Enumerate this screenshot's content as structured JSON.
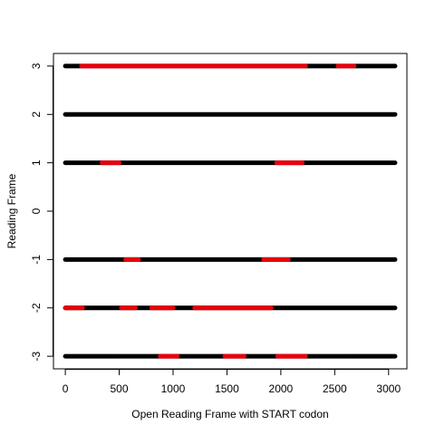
{
  "chart_data": {
    "type": "line",
    "xlabel": "Open Reading Frame with START codon",
    "ylabel": "Reading Frame",
    "xlim": [
      -110,
      3170
    ],
    "ylim": [
      -3.26,
      3.26
    ],
    "xticks": [
      0,
      500,
      1000,
      1500,
      2000,
      2500,
      3000
    ],
    "yticks": [
      -3,
      -2,
      -1,
      0,
      1,
      2,
      3
    ],
    "grid": false,
    "colors": {
      "frame": "#000000",
      "orf": "#e8000b",
      "axes": "#000000"
    },
    "frames": [
      {
        "frame": 3,
        "x": [
          0,
          3060
        ],
        "orfs": [
          [
            150,
            2230
          ],
          [
            2530,
            2680
          ]
        ]
      },
      {
        "frame": 2,
        "x": [
          0,
          3060
        ],
        "orfs": []
      },
      {
        "frame": 1,
        "x": [
          0,
          3060
        ],
        "orfs": [
          [
            340,
            500
          ],
          [
            1960,
            2200
          ]
        ]
      },
      {
        "frame": -1,
        "x": [
          0,
          3060
        ],
        "orfs": [
          [
            560,
            680
          ],
          [
            1840,
            2070
          ]
        ]
      },
      {
        "frame": -2,
        "x": [
          0,
          3060
        ],
        "orfs": [
          [
            0,
            160
          ],
          [
            520,
            650
          ],
          [
            800,
            1000
          ],
          [
            1200,
            1910
          ]
        ]
      },
      {
        "frame": -3,
        "x": [
          0,
          3060
        ],
        "orfs": [
          [
            880,
            1040
          ],
          [
            1480,
            1660
          ],
          [
            1970,
            2230
          ]
        ]
      }
    ]
  }
}
